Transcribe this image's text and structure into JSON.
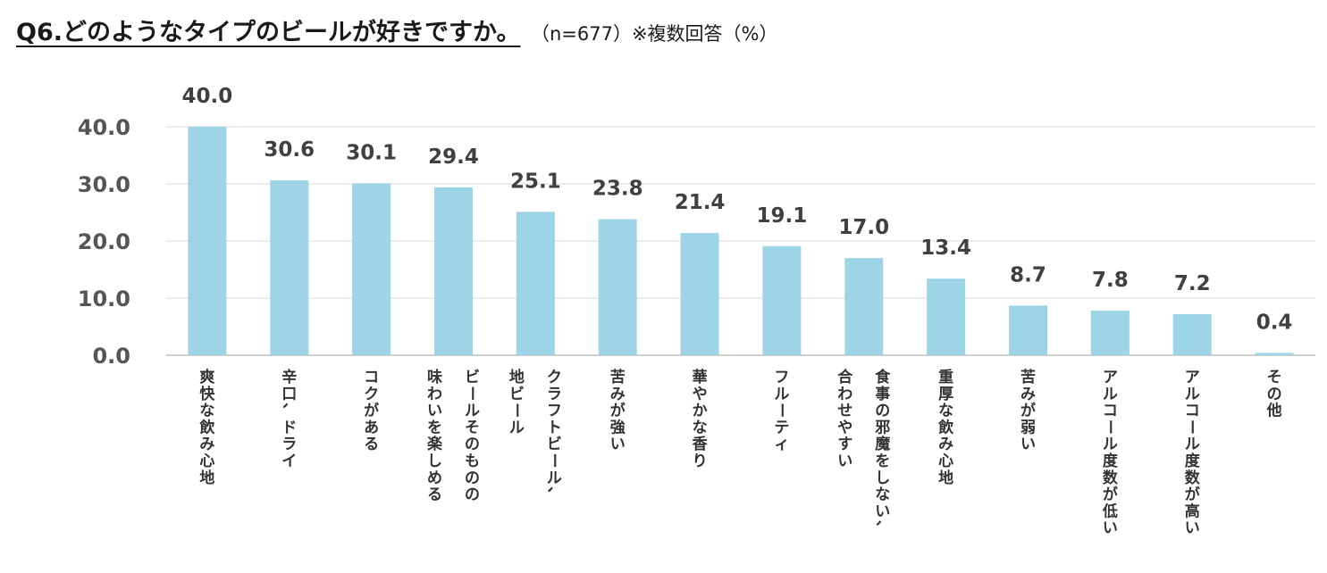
{
  "header": {
    "title": "Q6.どのようなタイプのビールが好きですか。",
    "subtitle": "（n=677）※複数回答（%）"
  },
  "chart_data": {
    "type": "bar",
    "title": "Q6.どのようなタイプのビールが好きですか。",
    "subtitle": "（n=677）※複数回答（%）",
    "xlabel": "",
    "ylabel": "",
    "ylim": [
      0,
      40
    ],
    "yticks": [
      "0.0",
      "10.0",
      "20.0",
      "30.0",
      "40.0"
    ],
    "grid": true,
    "categories": [
      [
        "爽快な飲み心地"
      ],
      [
        "辛口、ドライ"
      ],
      [
        "コクがある"
      ],
      [
        "ビールそのものの",
        "味わいを楽しめる"
      ],
      [
        "クラフトビール、",
        "地ビール"
      ],
      [
        "苦みが強い"
      ],
      [
        "華やかな香り"
      ],
      [
        "フルーティ"
      ],
      [
        "食事の邪魔をしない、",
        "合わせやすい"
      ],
      [
        "重厚な飲み心地"
      ],
      [
        "苦みが弱い"
      ],
      [
        "アルコール度数が低い"
      ],
      [
        "アルコール度数が高い"
      ],
      [
        "その他"
      ]
    ],
    "values": [
      40.0,
      30.6,
      30.1,
      29.4,
      25.1,
      23.8,
      21.4,
      19.1,
      17.0,
      13.4,
      8.7,
      7.8,
      7.2,
      0.4
    ],
    "value_labels": [
      "40.0",
      "30.6",
      "30.1",
      "29.4",
      "25.1",
      "23.8",
      "21.4",
      "19.1",
      "17.0",
      "13.4",
      "8.7",
      "7.8",
      "7.2",
      "0.4"
    ],
    "colors": {
      "bar": "#9dd4e6",
      "grid": "#d9d9d9",
      "axis": "#bfbfbf"
    }
  }
}
